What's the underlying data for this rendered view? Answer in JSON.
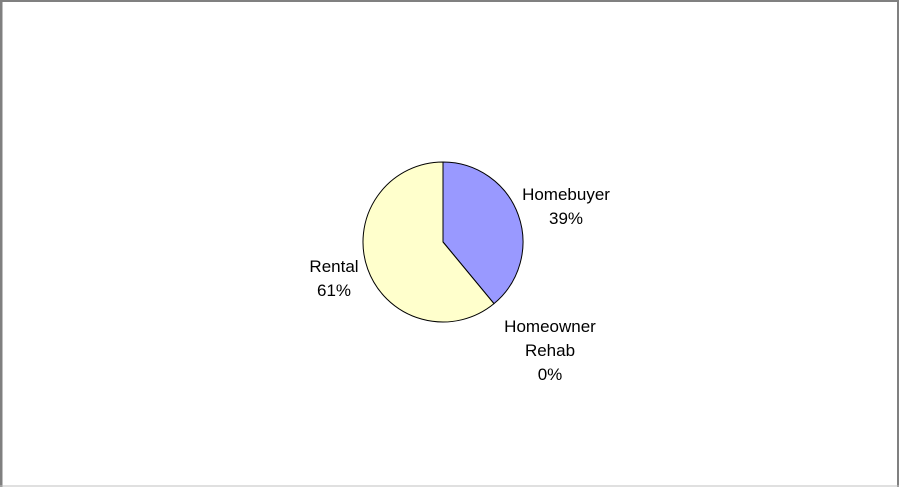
{
  "chart_data": {
    "type": "pie",
    "title": "",
    "slices": [
      {
        "label": "Homebuyer",
        "label_lines": [
          "Homebuyer"
        ],
        "percent_label": "39%",
        "value": 39,
        "color": "#9999ff",
        "label_anchor": "right-top"
      },
      {
        "label": "Homeowner Rehab",
        "label_lines": [
          "Homeowner",
          "Rehab"
        ],
        "percent_label": "0%",
        "value": 0,
        "color": "#993366",
        "label_anchor": "bottom-right"
      },
      {
        "label": "Rental",
        "label_lines": [
          "Rental"
        ],
        "percent_label": "61%",
        "value": 61,
        "color": "#ffffcc",
        "label_anchor": "left"
      }
    ],
    "legend": "none",
    "start_angle_deg": 0,
    "direction": "clockwise",
    "outline_color": "#000000",
    "frame_colors": {
      "top": "#808080",
      "left": "#808080",
      "right": "#808080",
      "bottom": "#c0c0c0"
    }
  }
}
